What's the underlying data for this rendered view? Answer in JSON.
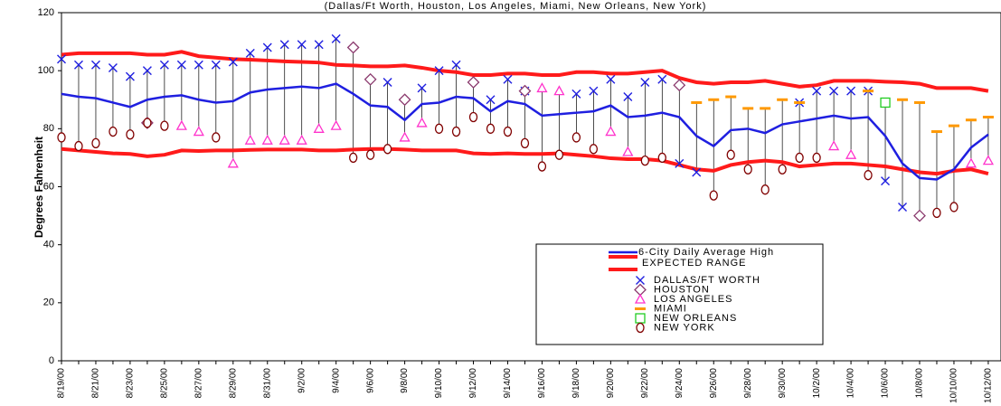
{
  "chart_data": {
    "type": "line",
    "subtitle": "(Dallas/Ft Worth, Houston, Los Angeles, Miami, New Orleans, New York)",
    "y_label": "Degrees Fahrenheit",
    "ylim": [
      0,
      120
    ],
    "yticks": [
      0,
      20,
      40,
      60,
      80,
      100,
      120
    ],
    "categories": [
      "8/19/00",
      null,
      "8/21/00",
      null,
      "8/23/00",
      null,
      "8/25/00",
      null,
      "8/27/00",
      null,
      "8/29/00",
      null,
      "8/31/00",
      null,
      "9/2/00",
      null,
      "9/4/00",
      null,
      "9/6/00",
      null,
      "9/8/00",
      null,
      "9/10/00",
      null,
      "9/12/00",
      null,
      "9/14/00",
      null,
      "9/16/00",
      null,
      "9/18/00",
      null,
      "9/20/00",
      null,
      "9/22/00",
      null,
      "9/24/00",
      null,
      "9/26/00",
      null,
      "9/28/00",
      null,
      "9/30/00",
      null,
      "10/2/00",
      null,
      "10/4/00",
      null,
      "10/6/00",
      null,
      "10/8/00",
      null,
      "10/10/00",
      null,
      "10/12/00"
    ],
    "average": {
      "name": "6-City Daily Average High",
      "color": "#1f1fe0",
      "values": [
        92,
        91,
        90.5,
        89,
        87.5,
        90,
        91,
        91.5,
        90,
        89,
        89.5,
        92.5,
        93.5,
        94,
        94.5,
        94,
        95.5,
        92,
        88,
        87.5,
        83,
        88.5,
        89,
        91,
        90.5,
        86,
        89.5,
        88.5,
        84.5,
        85,
        85.5,
        86,
        88,
        84,
        84.5,
        85.5,
        84,
        77.5,
        74,
        79.5,
        80,
        78.5,
        81.5,
        82.5,
        83.5,
        84.5,
        83.5,
        84,
        77.5,
        68,
        63,
        62.5,
        66,
        73.5,
        78
      ]
    },
    "range": {
      "name": "EXPECTED RANGE",
      "color": "#ff1a1a",
      "high": [
        105.5,
        106,
        106,
        106,
        106,
        105.5,
        105.5,
        106.5,
        105,
        104.5,
        104,
        103.8,
        103.5,
        103.2,
        103,
        102.8,
        102,
        101.8,
        101.5,
        101.5,
        101.8,
        101,
        100,
        99.5,
        98.5,
        98.5,
        99,
        99,
        98.5,
        98.5,
        99.5,
        99.5,
        99,
        99,
        99.5,
        100,
        97.5,
        96,
        95.5,
        96,
        96,
        96.5,
        95.5,
        94.5,
        95,
        96.5,
        96.5,
        96.5,
        96.2,
        96,
        95.5,
        94,
        94,
        94,
        93
      ],
      "low": [
        73,
        72.5,
        72,
        71.5,
        71.3,
        70.5,
        71,
        72.5,
        72.3,
        72.5,
        72.5,
        72.7,
        72.8,
        72.8,
        72.8,
        72.5,
        72.5,
        72.8,
        73,
        73,
        72.8,
        72.5,
        72.5,
        72.5,
        71.5,
        71.3,
        71.5,
        71.3,
        71.3,
        71.5,
        71,
        70.5,
        69.8,
        69.5,
        69.5,
        69,
        67.5,
        66,
        65.5,
        67.5,
        68.5,
        69,
        68.5,
        67,
        67.5,
        68,
        68,
        67.5,
        67,
        66,
        65,
        64.5,
        65.5,
        66,
        64.5
      ]
    },
    "series": [
      {
        "name": "DALLAS/FT WORTH",
        "color": "#1f1fe0",
        "marker": "x",
        "values": [
          104,
          102,
          102,
          101,
          98,
          100,
          102,
          102,
          102,
          102,
          103,
          106,
          108,
          109,
          109,
          109,
          111,
          null,
          null,
          96,
          null,
          94,
          100,
          102,
          null,
          90,
          97,
          93,
          null,
          null,
          92,
          93,
          97,
          91,
          96,
          97,
          68,
          65,
          null,
          null,
          null,
          null,
          null,
          89,
          93,
          93,
          93,
          93,
          62,
          53,
          null,
          null,
          null,
          null,
          null
        ]
      },
      {
        "name": "HOUSTON",
        "color": "#8b3a6e",
        "marker": "diamond",
        "values": [
          null,
          null,
          null,
          null,
          null,
          82,
          null,
          null,
          null,
          null,
          null,
          null,
          null,
          null,
          null,
          null,
          null,
          108,
          97,
          null,
          90,
          null,
          null,
          null,
          96,
          null,
          null,
          93,
          null,
          null,
          null,
          null,
          null,
          null,
          null,
          null,
          95,
          null,
          null,
          null,
          null,
          null,
          null,
          null,
          null,
          null,
          null,
          null,
          null,
          null,
          50,
          null,
          null,
          null,
          null
        ]
      },
      {
        "name": "LOS ANGELES",
        "color": "#ff33cc",
        "marker": "triangle",
        "values": [
          null,
          null,
          null,
          null,
          null,
          null,
          null,
          81,
          79,
          null,
          68,
          76,
          76,
          76,
          76,
          80,
          81,
          null,
          null,
          null,
          77,
          82,
          null,
          null,
          null,
          null,
          null,
          null,
          94,
          93,
          null,
          null,
          79,
          72,
          null,
          null,
          null,
          null,
          null,
          null,
          null,
          null,
          null,
          null,
          null,
          74,
          71,
          null,
          null,
          null,
          null,
          null,
          null,
          68,
          69
        ]
      },
      {
        "name": "MIAMI",
        "color": "#ff9900",
        "marker": "dash",
        "values": [
          null,
          null,
          null,
          null,
          null,
          null,
          null,
          null,
          null,
          null,
          null,
          null,
          null,
          null,
          null,
          null,
          null,
          null,
          null,
          null,
          null,
          null,
          null,
          null,
          null,
          null,
          null,
          null,
          null,
          null,
          null,
          null,
          null,
          null,
          null,
          null,
          null,
          89,
          90,
          91,
          87,
          87,
          90,
          89,
          null,
          null,
          null,
          93,
          null,
          90,
          89,
          79,
          81,
          83,
          84
        ]
      },
      {
        "name": "NEW ORLEANS",
        "color": "#22cc22",
        "marker": "square",
        "values": [
          null,
          null,
          null,
          null,
          null,
          null,
          null,
          null,
          null,
          null,
          null,
          null,
          null,
          null,
          null,
          null,
          null,
          null,
          null,
          null,
          null,
          null,
          null,
          null,
          null,
          null,
          null,
          null,
          null,
          null,
          null,
          null,
          null,
          null,
          null,
          null,
          null,
          null,
          null,
          null,
          null,
          null,
          null,
          null,
          null,
          null,
          null,
          null,
          89,
          null,
          null,
          null,
          null,
          null,
          null
        ]
      },
      {
        "name": "NEW YORK",
        "color": "#800000",
        "marker": "circle",
        "values": [
          77,
          74,
          75,
          79,
          78,
          82,
          81,
          null,
          null,
          77,
          null,
          null,
          null,
          null,
          null,
          null,
          null,
          70,
          71,
          73,
          null,
          null,
          80,
          79,
          84,
          80,
          79,
          75,
          67,
          71,
          77,
          73,
          null,
          null,
          69,
          70,
          null,
          null,
          57,
          71,
          66,
          59,
          66,
          70,
          70,
          null,
          null,
          64,
          null,
          null,
          null,
          51,
          53,
          null,
          null
        ]
      }
    ]
  }
}
